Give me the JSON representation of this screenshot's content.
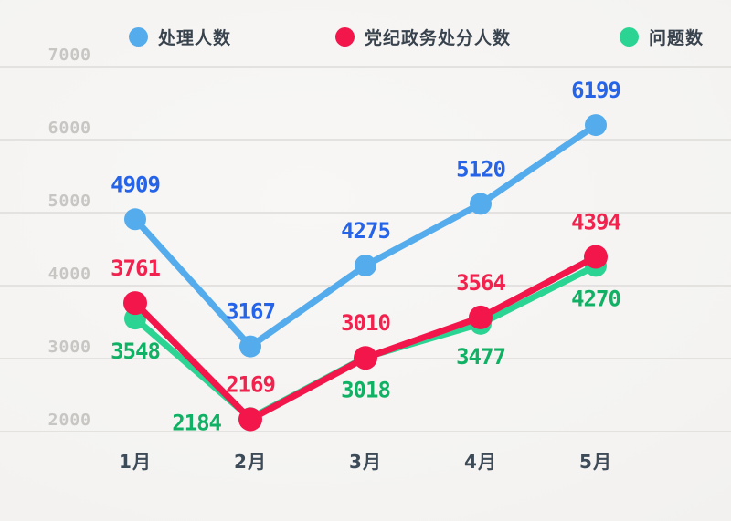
{
  "legend": {
    "items": [
      {
        "id": "processed",
        "label": "处理人数",
        "color": "#55acec"
      },
      {
        "id": "discipline",
        "label": "党纪政务处分人数",
        "color": "#f2164b"
      },
      {
        "id": "issues",
        "label": "问题数",
        "color": "#2cd494"
      }
    ]
  },
  "chart_data": {
    "type": "line",
    "title": "",
    "xlabel": "",
    "ylabel": "",
    "categories": [
      "1月",
      "2月",
      "3月",
      "4月",
      "5月"
    ],
    "series": [
      {
        "id": "processed",
        "name": "处理人数",
        "values": [
          4909,
          3167,
          4275,
          5120,
          6199
        ],
        "line_color": "#55acec",
        "label_color": "#2563e8",
        "label_positions": [
          "above",
          "above",
          "above",
          "above",
          "above"
        ]
      },
      {
        "id": "discipline",
        "name": "党纪政务处分人数",
        "values": [
          3761,
          2169,
          3010,
          3564,
          4394
        ],
        "line_color": "#f2164b",
        "label_color": "#f1224e",
        "label_positions": [
          "above",
          "above",
          "above",
          "above",
          "above"
        ]
      },
      {
        "id": "issues",
        "name": "问题数",
        "values": [
          3548,
          2184,
          3018,
          3477,
          4270
        ],
        "line_color": "#2cd494",
        "label_color": "#10b164",
        "label_positions": [
          "below",
          "left",
          "below",
          "below",
          "below"
        ]
      }
    ],
    "y_ticks": [
      2000,
      3000,
      4000,
      5000,
      6000,
      7000
    ],
    "ylim": [
      2000,
      7000
    ],
    "grid": true,
    "legend_position": "top",
    "grid_color": "#dedcd9",
    "tick_label_color": "#c8c6c3",
    "axis_label_color": "#3d4a57"
  }
}
